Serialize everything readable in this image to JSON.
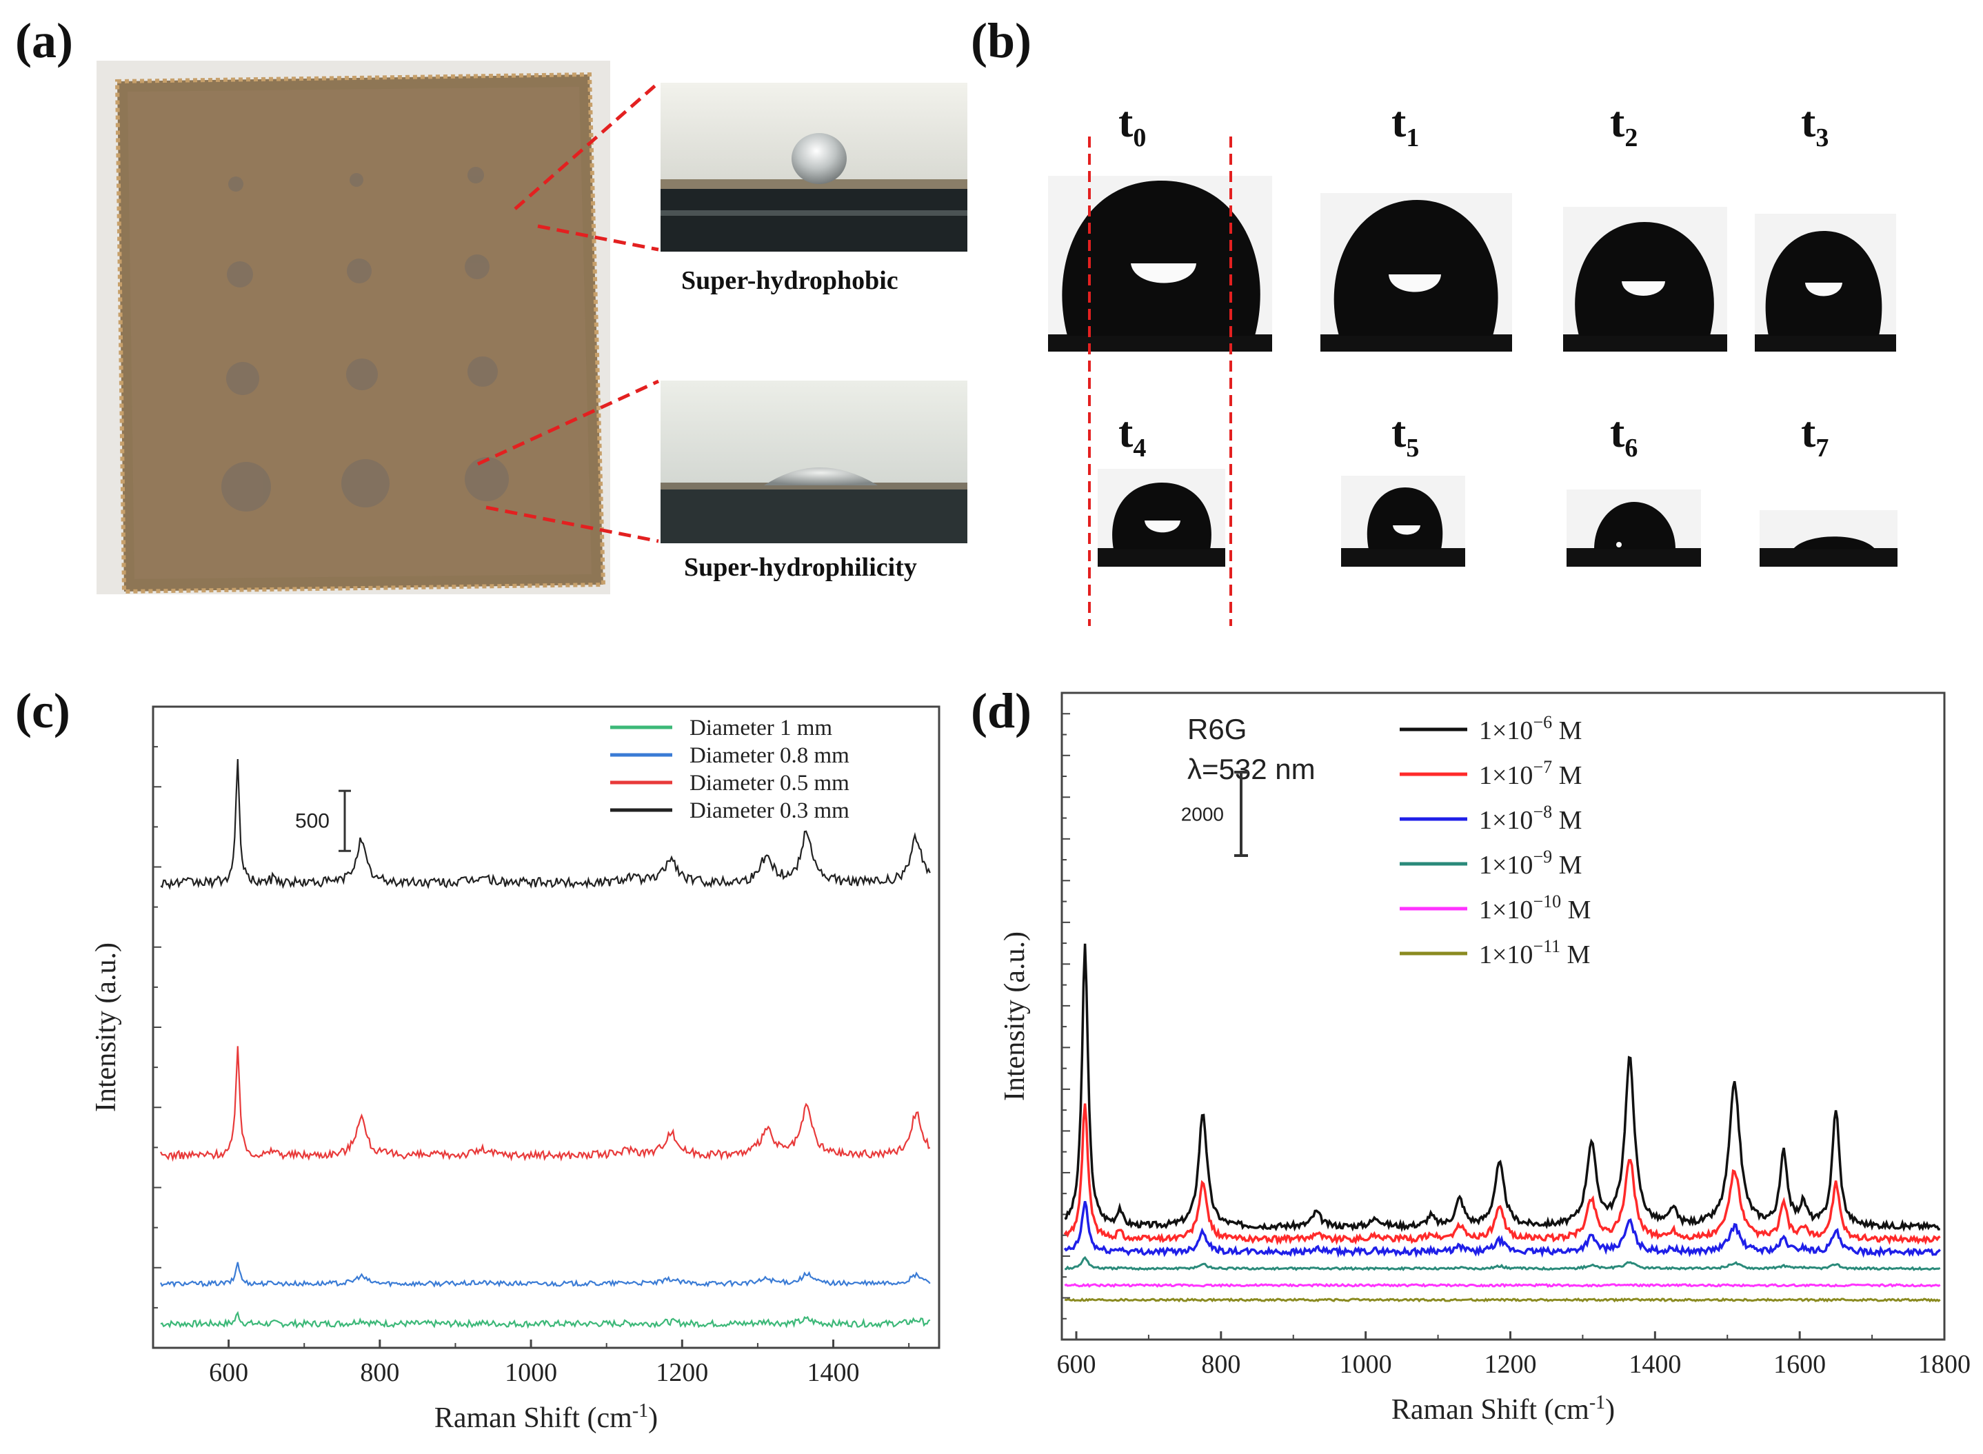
{
  "figure": {
    "panels": {
      "a": {
        "label": "(a)",
        "inset_top_caption": "Super-hydrophobic",
        "inset_bottom_caption": "Super-hydrophilicity"
      },
      "b": {
        "label": "(b)",
        "time_labels": [
          {
            "base": "t",
            "sub": "0"
          },
          {
            "base": "t",
            "sub": "1"
          },
          {
            "base": "t",
            "sub": "2"
          },
          {
            "base": "t",
            "sub": "3"
          },
          {
            "base": "t",
            "sub": "4"
          },
          {
            "base": "t",
            "sub": "5"
          },
          {
            "base": "t",
            "sub": "6"
          },
          {
            "base": "t",
            "sub": "7"
          }
        ]
      },
      "c": {
        "label": "(c)"
      },
      "d": {
        "label": "(d)"
      }
    }
  },
  "chart_data": [
    {
      "id": "c",
      "type": "line",
      "title": "",
      "xlabel": "Raman Shift (cm-1)",
      "ylabel": "Intensity (a.u.)",
      "xlim": [
        500,
        1540
      ],
      "ylim": [
        0,
        16
      ],
      "xticks": [
        600,
        800,
        1000,
        1200,
        1400
      ],
      "scale_bar_label": "500",
      "scale_bar_value": 1,
      "legend": [
        {
          "name": "Diameter 1 mm",
          "color": "#3cb878"
        },
        {
          "name": "Diameter 0.8 mm",
          "color": "#3a7bd5"
        },
        {
          "name": "Diameter 0.5 mm",
          "color": "#e83a3a"
        },
        {
          "name": "Diameter 0.3 mm",
          "color": "#222222"
        }
      ],
      "peak_positions": [
        612,
        660,
        775,
        935,
        1130,
        1185,
        1312,
        1365,
        1510
      ],
      "series": [
        {
          "name": "Diameter 1 mm",
          "color": "#3cb878",
          "baseline": 0.6,
          "amplitude": 0.25,
          "noise": 0.08
        },
        {
          "name": "Diameter 0.8 mm",
          "color": "#3a7bd5",
          "baseline": 1.6,
          "amplitude": 0.55,
          "noise": 0.06
        },
        {
          "name": "Diameter 0.5 mm",
          "color": "#e83a3a",
          "baseline": 4.8,
          "amplitude": 2.8,
          "noise": 0.1
        },
        {
          "name": "Diameter 0.3 mm",
          "color": "#222222",
          "baseline": 11.6,
          "amplitude": 3.0,
          "noise": 0.12
        }
      ]
    },
    {
      "id": "d",
      "type": "line",
      "title": "",
      "xlabel": "Raman Shift (cm-1)",
      "ylabel": "Intensity (a.u.)",
      "xlim": [
        580,
        1800
      ],
      "ylim": [
        0,
        31
      ],
      "xticks": [
        600,
        800,
        1000,
        1200,
        1400,
        1600,
        1800
      ],
      "annotation_sample": "R6G",
      "annotation_wavelength": "λ=532 nm",
      "scale_bar_label": "2000",
      "scale_bar_value": 2,
      "legend": [
        {
          "name": "1×10−6 M",
          "mantissa": "1×10",
          "exp": "−6",
          "unit": " M",
          "color": "#111111"
        },
        {
          "name": "1×10−7 M",
          "mantissa": "1×10",
          "exp": "−7",
          "unit": " M",
          "color": "#ff2a2a"
        },
        {
          "name": "1×10−8 M",
          "mantissa": "1×10",
          "exp": "−8",
          "unit": " M",
          "color": "#1f1fe8"
        },
        {
          "name": "1×10−9 M",
          "mantissa": "1×10",
          "exp": "−9",
          "unit": " M",
          "color": "#2a8a7a"
        },
        {
          "name": "1×10−10 M",
          "mantissa": "1×10",
          "exp": "−10",
          "unit": " M",
          "color": "#ff33ff"
        },
        {
          "name": "1×10−11 M",
          "mantissa": "1×10",
          "exp": "−11",
          "unit": " M",
          "color": "#8a8a20"
        }
      ],
      "peaks": [
        {
          "x": 612,
          "h": 13.5,
          "w": 5
        },
        {
          "x": 660,
          "h": 0.8,
          "w": 4
        },
        {
          "x": 775,
          "h": 5.5,
          "w": 7
        },
        {
          "x": 932,
          "h": 0.7,
          "w": 7
        },
        {
          "x": 1015,
          "h": 0.4,
          "w": 8
        },
        {
          "x": 1090,
          "h": 0.5,
          "w": 6
        },
        {
          "x": 1130,
          "h": 1.3,
          "w": 7
        },
        {
          "x": 1185,
          "h": 3.0,
          "w": 8
        },
        {
          "x": 1312,
          "h": 3.9,
          "w": 8
        },
        {
          "x": 1365,
          "h": 8.0,
          "w": 8
        },
        {
          "x": 1425,
          "h": 0.8,
          "w": 5
        },
        {
          "x": 1510,
          "h": 6.8,
          "w": 9
        },
        {
          "x": 1578,
          "h": 3.5,
          "w": 6
        },
        {
          "x": 1605,
          "h": 1.0,
          "w": 6
        },
        {
          "x": 1650,
          "h": 5.6,
          "w": 6
        }
      ],
      "series": [
        {
          "name": "1×10−6 M",
          "color": "#111111",
          "baseline": 5.4,
          "scale": 1.0
        },
        {
          "name": "1×10−7 M",
          "color": "#ff2a2a",
          "baseline": 4.8,
          "scale": 0.48
        },
        {
          "name": "1×10−8 M",
          "color": "#1f1fe8",
          "baseline": 4.2,
          "scale": 0.18
        },
        {
          "name": "1×10−9 M",
          "color": "#2a8a7a",
          "baseline": 3.4,
          "scale": 0.04
        },
        {
          "name": "1×10−10 M",
          "color": "#ff33ff",
          "baseline": 2.6,
          "scale": 0.0
        },
        {
          "name": "1×10−11 M",
          "color": "#8a8a20",
          "baseline": 1.9,
          "scale": 0.0
        }
      ]
    }
  ]
}
